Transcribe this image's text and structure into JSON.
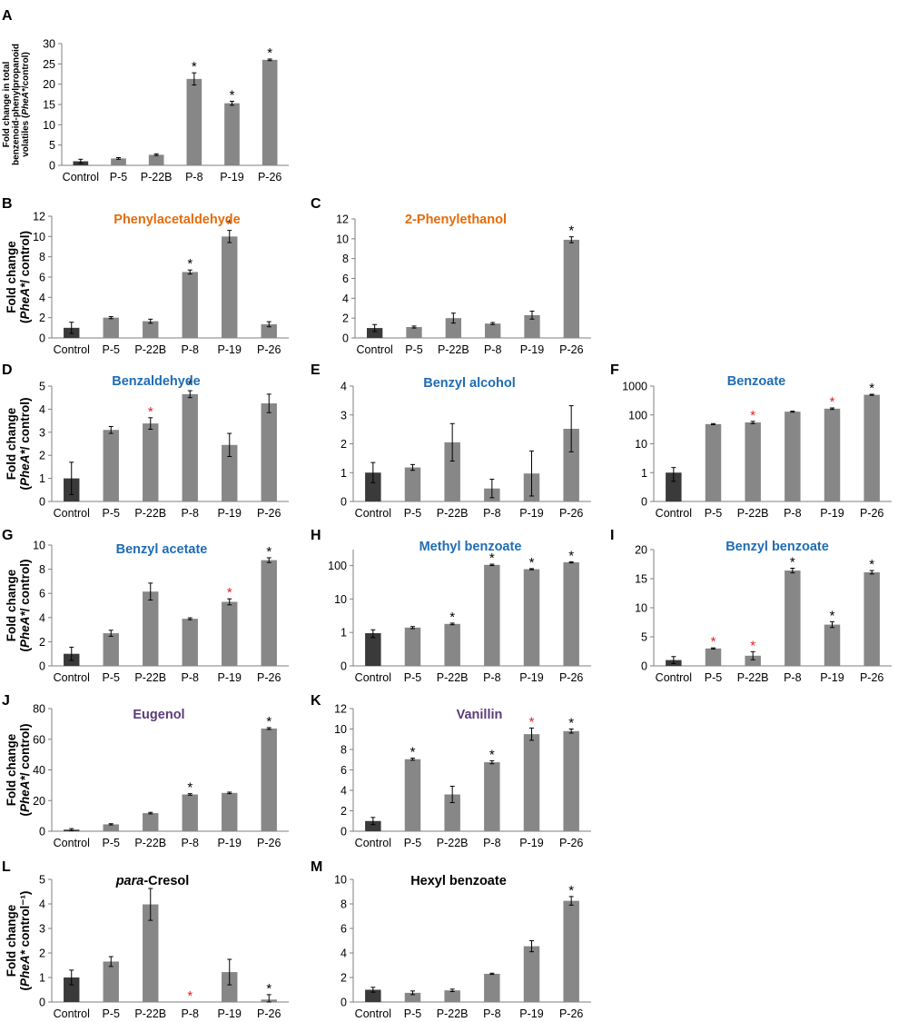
{
  "colors": {
    "control": "#3a3a3a",
    "sample": "#878787",
    "orange": "#e46c0a",
    "blue": "#1f6cb4",
    "purple": "#5b3b7a",
    "black": "#000000",
    "red": "#e8201c",
    "axis": "#7f7f7f"
  },
  "chart_data": [
    {
      "id": "A",
      "panel_label": "A",
      "type": "bar",
      "title": "",
      "title_color": "black",
      "ylabel_lines": [
        "Fold change in total",
        "benzenoid-phenylpropanoid",
        "volatiles (PheA*/control)"
      ],
      "categories": [
        "Control",
        "P-5",
        "P-22B",
        "P-8",
        "P-19",
        "P-26"
      ],
      "values": [
        1,
        1.7,
        2.6,
        21.3,
        15.3,
        26
      ],
      "errors": [
        0.5,
        0.2,
        0.2,
        1.5,
        0.5,
        0.2
      ],
      "sig": [
        "",
        "",
        "",
        "black",
        "black",
        "black"
      ],
      "scale": "linear",
      "ylim": [
        0,
        30
      ],
      "ticks": [
        0,
        5,
        10,
        15,
        20,
        25,
        30
      ],
      "tick_labels": [
        "0",
        "5",
        "10",
        "15",
        "20",
        "25",
        "30"
      ]
    },
    {
      "id": "B",
      "panel_label": "B",
      "type": "bar",
      "title": "Phenylacetaldehyde",
      "title_color": "orange",
      "ylabel_lines": [
        "Fold change",
        "(PheA*/ control)"
      ],
      "categories": [
        "Control",
        "P-5",
        "P-22B",
        "P-8",
        "P-19",
        "P-26"
      ],
      "values": [
        1,
        2,
        1.65,
        6.5,
        10,
        1.35
      ],
      "errors": [
        0.55,
        0.1,
        0.2,
        0.2,
        0.6,
        0.25
      ],
      "sig": [
        "",
        "",
        "",
        "black",
        "black",
        ""
      ],
      "scale": "linear",
      "ylim": [
        0,
        12
      ],
      "ticks": [
        0,
        2,
        4,
        6,
        8,
        10,
        12
      ],
      "tick_labels": [
        "0",
        "2",
        "4",
        "6",
        "8",
        "10",
        "12"
      ]
    },
    {
      "id": "C",
      "panel_label": "C",
      "type": "bar",
      "title": "2-Phenylethanol",
      "title_color": "orange",
      "ylabel_lines": [],
      "categories": [
        "Control",
        "P-5",
        "P-22B",
        "P-8",
        "P-19",
        "P-26"
      ],
      "values": [
        1,
        1.1,
        2,
        1.45,
        2.3,
        9.9
      ],
      "errors": [
        0.35,
        0.1,
        0.5,
        0.1,
        0.4,
        0.3
      ],
      "sig": [
        "",
        "",
        "",
        "",
        "",
        "black"
      ],
      "scale": "linear",
      "ylim": [
        0,
        12
      ],
      "ticks": [
        0,
        2,
        4,
        6,
        8,
        10,
        12
      ],
      "tick_labels": [
        "0",
        "2",
        "4",
        "6",
        "8",
        "10",
        "12"
      ]
    },
    {
      "id": "D",
      "panel_label": "D",
      "type": "bar",
      "title": "Benzaldehyde",
      "title_color": "blue",
      "ylabel_lines": [
        "Fold change",
        "(PheA*/ control)"
      ],
      "categories": [
        "Control",
        "P-5",
        "P-22B",
        "P-8",
        "P-19",
        "P-26"
      ],
      "values": [
        1,
        3.1,
        3.38,
        4.65,
        2.45,
        4.25
      ],
      "errors": [
        0.7,
        0.15,
        0.25,
        0.15,
        0.5,
        0.4
      ],
      "sig": [
        "",
        "",
        "red",
        "black",
        "",
        ""
      ],
      "scale": "linear",
      "ylim": [
        0,
        5
      ],
      "ticks": [
        0,
        1,
        2,
        3,
        4,
        5
      ],
      "tick_labels": [
        "0",
        "1",
        "2",
        "3",
        "4",
        "5"
      ]
    },
    {
      "id": "E",
      "panel_label": "E",
      "type": "bar",
      "title": "Benzyl alcohol",
      "title_color": "blue",
      "ylabel_lines": [],
      "categories": [
        "Control",
        "P-5",
        "P-22B",
        "P-8",
        "P-19",
        "P-26"
      ],
      "values": [
        1,
        1.18,
        2.05,
        0.45,
        0.97,
        2.52
      ],
      "errors": [
        0.35,
        0.1,
        0.65,
        0.32,
        0.78,
        0.8
      ],
      "sig": [
        "",
        "",
        "",
        "",
        "",
        ""
      ],
      "scale": "linear",
      "ylim": [
        0,
        4
      ],
      "ticks": [
        0,
        1,
        2,
        3,
        4
      ],
      "tick_labels": [
        "0",
        "1",
        "2",
        "3",
        "4"
      ]
    },
    {
      "id": "F",
      "panel_label": "F",
      "type": "bar",
      "title": "Benzoate",
      "title_color": "blue",
      "ylabel_lines": [],
      "categories": [
        "Control",
        "P-5",
        "P-22B",
        "P-8",
        "P-19",
        "P-26"
      ],
      "values": [
        1,
        48,
        55,
        130,
        165,
        500
      ],
      "errors": [
        0.5,
        2,
        5,
        5,
        10,
        20
      ],
      "sig": [
        "",
        "",
        "red",
        "",
        "red",
        "black"
      ],
      "scale": "log",
      "ylim": [
        0.1,
        1000
      ],
      "ticks": [
        0.1,
        1,
        10,
        100,
        1000
      ],
      "tick_labels": [
        "0",
        "1",
        "10",
        "100",
        "1000"
      ]
    },
    {
      "id": "G",
      "panel_label": "G",
      "type": "bar",
      "title": "Benzyl acetate",
      "title_color": "blue",
      "ylabel_lines": [
        "Fold change",
        "(PheA*/ control)"
      ],
      "categories": [
        "Control",
        "P-5",
        "P-22B",
        "P-8",
        "P-19",
        "P-26"
      ],
      "values": [
        1,
        2.7,
        6.15,
        3.9,
        5.3,
        8.75
      ],
      "errors": [
        0.55,
        0.25,
        0.7,
        0.08,
        0.25,
        0.2
      ],
      "sig": [
        "",
        "",
        "",
        "",
        "red",
        "black"
      ],
      "scale": "linear",
      "ylim": [
        0,
        10
      ],
      "ticks": [
        0,
        2,
        4,
        6,
        8,
        10
      ],
      "tick_labels": [
        "0",
        "2",
        "4",
        "6",
        "8",
        "10"
      ]
    },
    {
      "id": "H",
      "panel_label": "H",
      "type": "bar",
      "title": "Methyl benzoate",
      "title_color": "blue",
      "ylabel_lines": [],
      "categories": [
        "Control",
        "P-5",
        "P-22B",
        "P-8",
        "P-19",
        "P-26"
      ],
      "values": [
        0.95,
        1.4,
        1.8,
        105,
        78,
        125
      ],
      "errors": [
        0.25,
        0.1,
        0.1,
        5,
        3,
        5
      ],
      "sig": [
        "",
        "",
        "black",
        "black",
        "black",
        "black"
      ],
      "scale": "log",
      "ylim": [
        0.1,
        300
      ],
      "ticks": [
        0.1,
        1,
        10,
        100
      ],
      "tick_labels": [
        "0",
        "1",
        "10",
        "100"
      ]
    },
    {
      "id": "I",
      "panel_label": "I",
      "type": "bar",
      "title": "Benzyl benzoate",
      "title_color": "blue",
      "ylabel_lines": [],
      "categories": [
        "Control",
        "P-5",
        "P-22B",
        "P-8",
        "P-19",
        "P-26"
      ],
      "values": [
        1,
        3,
        1.75,
        16.4,
        7.1,
        16.1
      ],
      "errors": [
        0.6,
        0.1,
        0.7,
        0.4,
        0.5,
        0.3
      ],
      "sig": [
        "",
        "red",
        "red",
        "black",
        "black",
        "black"
      ],
      "scale": "linear",
      "ylim": [
        0,
        20
      ],
      "ticks": [
        0,
        5,
        10,
        15,
        20
      ],
      "tick_labels": [
        "0",
        "5",
        "10",
        "15",
        "20"
      ]
    },
    {
      "id": "J",
      "panel_label": "J",
      "type": "bar",
      "title": "Eugenol",
      "title_color": "purple",
      "ylabel_lines": [
        "Fold change",
        "(PheA*/ control)"
      ],
      "categories": [
        "Control",
        "P-5",
        "P-22B",
        "P-8",
        "P-19",
        "P-26"
      ],
      "values": [
        1,
        4.5,
        11.8,
        24,
        25,
        67
      ],
      "errors": [
        0.7,
        0.4,
        0.5,
        0.5,
        0.5,
        0.6
      ],
      "sig": [
        "",
        "",
        "",
        "black",
        "",
        "black"
      ],
      "scale": "linear",
      "ylim": [
        0,
        80
      ],
      "ticks": [
        0,
        20,
        40,
        60,
        80
      ],
      "tick_labels": [
        "0",
        "20",
        "40",
        "60",
        "80"
      ]
    },
    {
      "id": "K",
      "panel_label": "K",
      "type": "bar",
      "title": "Vanillin",
      "title_color": "purple",
      "ylabel_lines": [],
      "categories": [
        "Control",
        "P-5",
        "P-22B",
        "P-8",
        "P-19",
        "P-26"
      ],
      "values": [
        1,
        7.05,
        3.6,
        6.75,
        9.5,
        9.8
      ],
      "errors": [
        0.35,
        0.1,
        0.8,
        0.15,
        0.6,
        0.2
      ],
      "sig": [
        "",
        "black",
        "",
        "black",
        "red",
        "black"
      ],
      "scale": "linear",
      "ylim": [
        0,
        12
      ],
      "ticks": [
        0,
        2,
        4,
        6,
        8,
        10,
        12
      ],
      "tick_labels": [
        "0",
        "2",
        "4",
        "6",
        "8",
        "10",
        "12"
      ]
    },
    {
      "id": "L",
      "panel_label": "L",
      "type": "bar",
      "title": "para-Cresol",
      "title_color": "black",
      "title_italic_prefix": "para",
      "title_suffix": "-Cresol",
      "ylabel_lines": [
        "Fold change",
        "(PheA* control⁻¹)"
      ],
      "categories": [
        "Control",
        "P-5",
        "P-22B",
        "P-8",
        "P-19",
        "P-26"
      ],
      "values": [
        1,
        1.65,
        3.98,
        0,
        1.22,
        0.1
      ],
      "errors": [
        0.3,
        0.2,
        0.65,
        0,
        0.52,
        0.2
      ],
      "sig": [
        "",
        "",
        "",
        "red",
        "",
        "black"
      ],
      "scale": "linear",
      "ylim": [
        0,
        5
      ],
      "ticks": [
        0,
        1,
        2,
        3,
        4,
        5
      ],
      "tick_labels": [
        "0",
        "1",
        "2",
        "3",
        "4",
        "5"
      ]
    },
    {
      "id": "M",
      "panel_label": "M",
      "type": "bar",
      "title": "Hexyl benzoate",
      "title_color": "black",
      "ylabel_lines": [],
      "categories": [
        "Control",
        "P-5",
        "P-22B",
        "P-8",
        "P-19",
        "P-26"
      ],
      "values": [
        1,
        0.75,
        0.95,
        2.3,
        4.55,
        8.25
      ],
      "errors": [
        0.2,
        0.15,
        0.1,
        0.05,
        0.45,
        0.35
      ],
      "sig": [
        "",
        "",
        "",
        "",
        "",
        "black"
      ],
      "scale": "linear",
      "ylim": [
        0,
        10
      ],
      "ticks": [
        0,
        2,
        4,
        6,
        8,
        10
      ],
      "tick_labels": [
        "0",
        "2",
        "4",
        "6",
        "8",
        "10"
      ]
    }
  ]
}
